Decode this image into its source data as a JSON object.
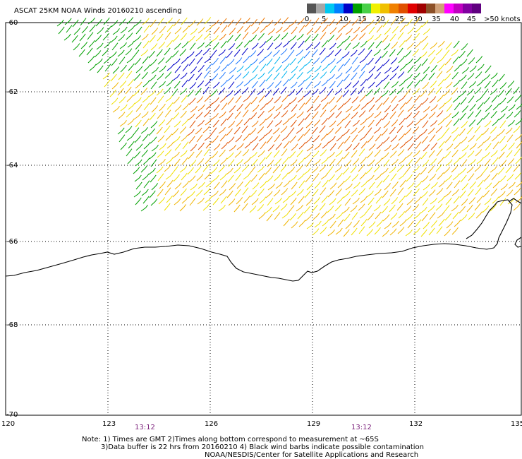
{
  "title": "ASCAT 25KM NOAA Winds 20160210 ascending",
  "colorbar": {
    "colors": [
      "#555555",
      "#a6a6a6",
      "#00c8f0",
      "#0080ff",
      "#0000c8",
      "#00a000",
      "#48d048",
      "#f0f000",
      "#f0c000",
      "#f08000",
      "#e05000",
      "#e00000",
      "#a00000",
      "#8c5028",
      "#d0a078",
      "#ff00ff",
      "#c000c0",
      "#8000a0",
      "#600080"
    ],
    "labels": [
      "0",
      "5",
      "10",
      "15",
      "20",
      "25",
      "30",
      "35",
      "40",
      "45",
      ">50 knots"
    ]
  },
  "axes": {
    "lat_labels": [
      "-60",
      "-62",
      "-64",
      "-66",
      "-68",
      "-70"
    ],
    "lon_labels": [
      "120",
      "123",
      "126",
      "129",
      "132",
      "135"
    ],
    "lat_values": [
      -60,
      -62,
      -64,
      -66,
      -68,
      -70
    ],
    "lon_values": [
      120,
      123,
      126,
      129,
      132,
      135
    ]
  },
  "times": [
    "13:12",
    "13:12"
  ],
  "notes": [
    "Note: 1) Times are GMT 2)Times along bottom correspond to measurement at ~65S",
    "3)Data buffer is 22 hrs from 20160210 4) Black wind barbs indicate possible contamination",
    "NOAA/NESDIS/Center for Satellite Applications and Research"
  ]
}
